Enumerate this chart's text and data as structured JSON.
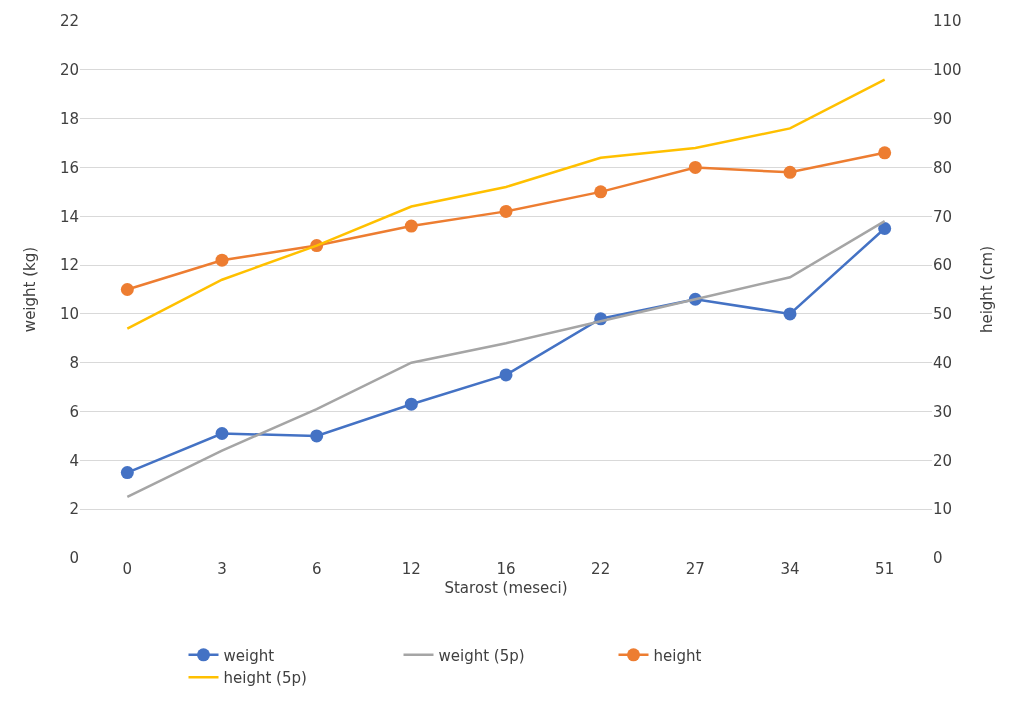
{
  "chart_data": {
    "type": "line",
    "xlabel": "Starost (meseci)",
    "ylabel": "weight (kg)",
    "y2label": "height (cm)",
    "categories": [
      "0",
      "3",
      "6",
      "12",
      "16",
      "22",
      "27",
      "34",
      "51"
    ],
    "series": [
      {
        "name": "weight",
        "color": "#4472c4",
        "marker": "circle",
        "values": [
          3.5,
          5.1,
          5.0,
          6.3,
          7.5,
          9.8,
          10.6,
          10.0,
          13.5
        ]
      },
      {
        "name": "weight (5p)",
        "color": "#a5a5a5",
        "marker": "none",
        "values": [
          2.5,
          4.4,
          6.1,
          8.0,
          8.8,
          9.7,
          10.6,
          11.5,
          13.8
        ]
      },
      {
        "name": "height",
        "color": "#ed7d31",
        "marker": "circle",
        "axis": "y2",
        "values": [
          55,
          61,
          64,
          68,
          71,
          75,
          80,
          79,
          83
        ]
      },
      {
        "name": "height (5p)",
        "color": "#ffc000",
        "marker": "none",
        "axis": "y2",
        "values": [
          47,
          57,
          64,
          72,
          76,
          82,
          84,
          88,
          98
        ]
      }
    ],
    "ylim": [
      0,
      22
    ],
    "yticks": [
      0,
      2,
      4,
      6,
      8,
      10,
      12,
      14,
      16,
      18,
      20,
      22
    ],
    "y2lim": [
      0,
      110
    ],
    "y2ticks": [
      0,
      10,
      20,
      30,
      40,
      50,
      60,
      70,
      80,
      90,
      100,
      110
    ],
    "grid": "y",
    "legend": "bottom",
    "line_style": "solid"
  }
}
